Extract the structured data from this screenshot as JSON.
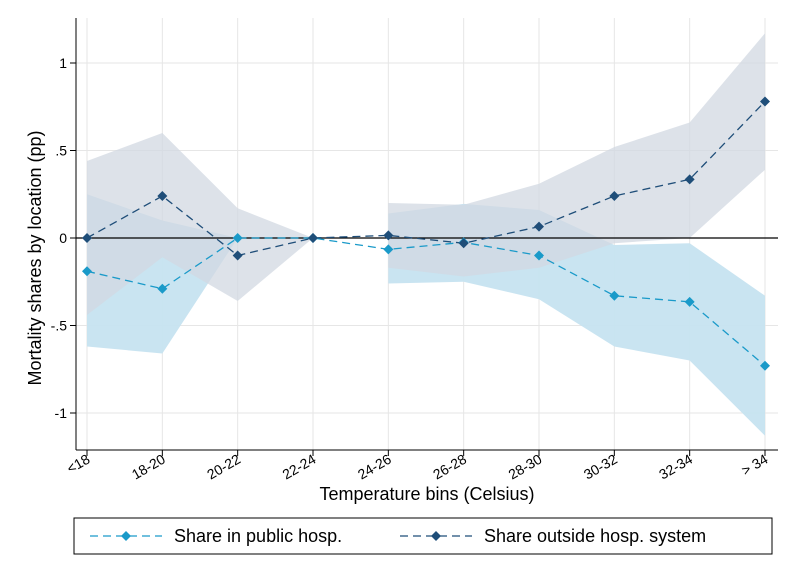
{
  "chart_data": {
    "type": "line",
    "xlabel": "Temperature bins (Celsius)",
    "ylabel": "Mortality shares by location (pp)",
    "categories": [
      "<18",
      "18-20",
      "20-22",
      "22-24",
      "24-26",
      "26-28",
      "28-30",
      "30-32",
      "32-34",
      "> 34"
    ],
    "ylim": [
      -1.22,
      1.26
    ],
    "yticks": [
      1,
      0.5,
      0,
      -0.5,
      -1
    ],
    "ytick_labels": [
      "1",
      ".5",
      "0",
      "-.5",
      "-1"
    ],
    "grid": true,
    "legend_position": "bottom",
    "series": [
      {
        "name": "Share in public hosp.",
        "color": "#1a9ac9",
        "band_color": "#c6e3f0",
        "marker": "diamond",
        "line_style": "dashed",
        "values": [
          -0.19,
          -0.29,
          0.0,
          0.0,
          -0.065,
          -0.025,
          -0.1,
          -0.33,
          -0.365,
          -0.73
        ],
        "ci_low": [
          -0.62,
          -0.66,
          0.0,
          0.0,
          -0.26,
          -0.25,
          -0.35,
          -0.62,
          -0.7,
          -1.13
        ],
        "ci_high": [
          0.25,
          0.1,
          0.0,
          0.0,
          0.14,
          0.195,
          0.16,
          -0.04,
          -0.03,
          -0.33
        ]
      },
      {
        "name": "Share outside hosp. system",
        "color": "#1f4e79",
        "band_color": "#d2d8e1",
        "marker": "diamond",
        "line_style": "dashed",
        "values": [
          0.0,
          0.24,
          -0.1,
          0.0,
          0.015,
          -0.03,
          0.065,
          0.24,
          0.335,
          0.78
        ],
        "ci_low": [
          -0.44,
          -0.11,
          -0.36,
          0.0,
          -0.17,
          -0.22,
          -0.17,
          -0.03,
          0.0,
          0.39
        ],
        "ci_high": [
          0.44,
          0.6,
          0.17,
          0.0,
          0.2,
          0.19,
          0.31,
          0.52,
          0.66,
          1.17
        ]
      }
    ],
    "segments": [
      [
        0,
        3
      ],
      [
        4,
        9
      ]
    ]
  }
}
